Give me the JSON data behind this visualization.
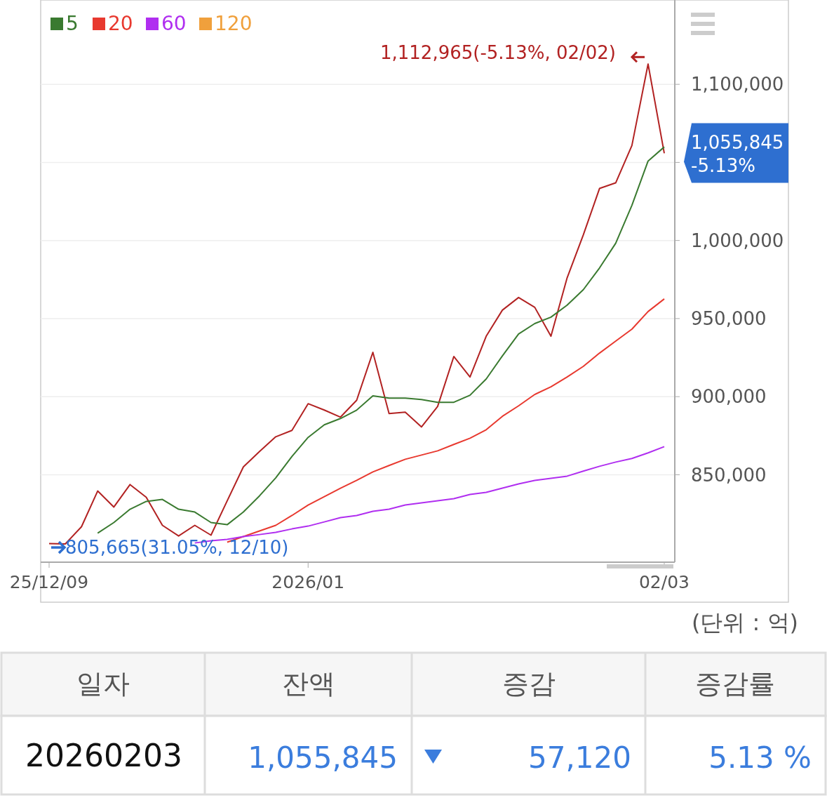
{
  "chart_data": {
    "type": "line",
    "categories": [
      "25/12/09",
      null,
      null,
      null,
      null,
      null,
      null,
      null,
      null,
      null,
      null,
      null,
      null,
      null,
      null,
      null,
      "2026/01",
      null,
      null,
      null,
      null,
      null,
      null,
      null,
      null,
      null,
      null,
      null,
      null,
      null,
      null,
      null,
      null,
      null,
      null,
      null,
      null,
      null,
      "02/03"
    ],
    "series": [
      {
        "color": "#b22222",
        "values": [
          805900,
          805665,
          816700,
          839600,
          829300,
          843700,
          835600,
          817600,
          810800,
          817600,
          811300,
          833300,
          855000,
          864900,
          874300,
          878400,
          895500,
          891400,
          886900,
          897700,
          928400,
          889200,
          890100,
          880600,
          893700,
          925700,
          912600,
          938700,
          955400,
          963500,
          957200,
          938700,
          976100,
          1003600,
          1033300,
          1036900,
          1060800,
          1112965,
          1055845
        ]
      },
      {
        "name": "5",
        "color": "#3a7a30",
        "values": [
          null,
          null,
          null,
          812600,
          819400,
          827900,
          832900,
          834200,
          827900,
          826100,
          819400,
          818000,
          826100,
          836500,
          848000,
          861700,
          873900,
          882000,
          886000,
          891400,
          900500,
          899100,
          899100,
          898200,
          896400,
          896400,
          900900,
          911300,
          926100,
          940100,
          946800,
          950900,
          958600,
          968500,
          982400,
          998200,
          1022500,
          1050900,
          1059900
        ]
      },
      {
        "name": "20",
        "color": "#e8392f",
        "values": [
          null,
          null,
          null,
          null,
          null,
          null,
          null,
          null,
          null,
          null,
          null,
          806800,
          810400,
          814000,
          817600,
          823900,
          830600,
          836000,
          841400,
          846400,
          851800,
          855900,
          859900,
          862600,
          865300,
          869400,
          873400,
          878800,
          887400,
          894100,
          901400,
          906300,
          912600,
          919400,
          927900,
          935600,
          943200,
          954500,
          962600
        ]
      },
      {
        "name": "60",
        "color": "#b02ef0",
        "values": [
          null,
          null,
          null,
          null,
          null,
          null,
          null,
          null,
          null,
          806300,
          807700,
          808600,
          810400,
          811700,
          813100,
          815300,
          817100,
          819800,
          822500,
          823900,
          826600,
          827900,
          830600,
          832000,
          833300,
          834700,
          837400,
          838700,
          841400,
          844100,
          846400,
          847700,
          849100,
          852300,
          855400,
          858100,
          860400,
          864000,
          868000
        ]
      },
      {
        "name": "120",
        "color": "#f0a03c",
        "values": [
          null,
          null,
          null,
          null,
          null,
          null,
          null,
          null,
          null,
          null,
          null,
          null,
          null,
          null,
          null,
          null,
          null,
          null,
          null,
          null,
          null,
          null,
          null,
          null,
          null,
          null,
          null,
          null,
          null,
          null,
          null,
          null,
          null,
          null,
          null,
          null,
          null,
          null,
          null
        ]
      }
    ],
    "ylim": [
      794000,
      1154000
    ],
    "yticks": [
      {
        "value": 850000,
        "label": "850,000"
      },
      {
        "value": 900000,
        "label": "900,000"
      },
      {
        "value": 950000,
        "label": "950,000"
      },
      {
        "value": 1000000,
        "label": "1,000,000"
      },
      {
        "value": 1050000,
        "label": null
      },
      {
        "value": 1100000,
        "label": "1,100,000"
      }
    ],
    "grid": "y",
    "legend": "top left",
    "marker": "none",
    "line_style": "solid",
    "annotations": [
      "1,112,965(-5.13%, 02/02)",
      "805,665(31.05%, 12/10)",
      "1,055,845",
      "-5.13%",
      "(단위 : 억)",
      "일자",
      "잔액",
      "증감",
      "증감률",
      "20260203",
      "1,055,845",
      "57,120",
      "5.13 %"
    ]
  }
}
